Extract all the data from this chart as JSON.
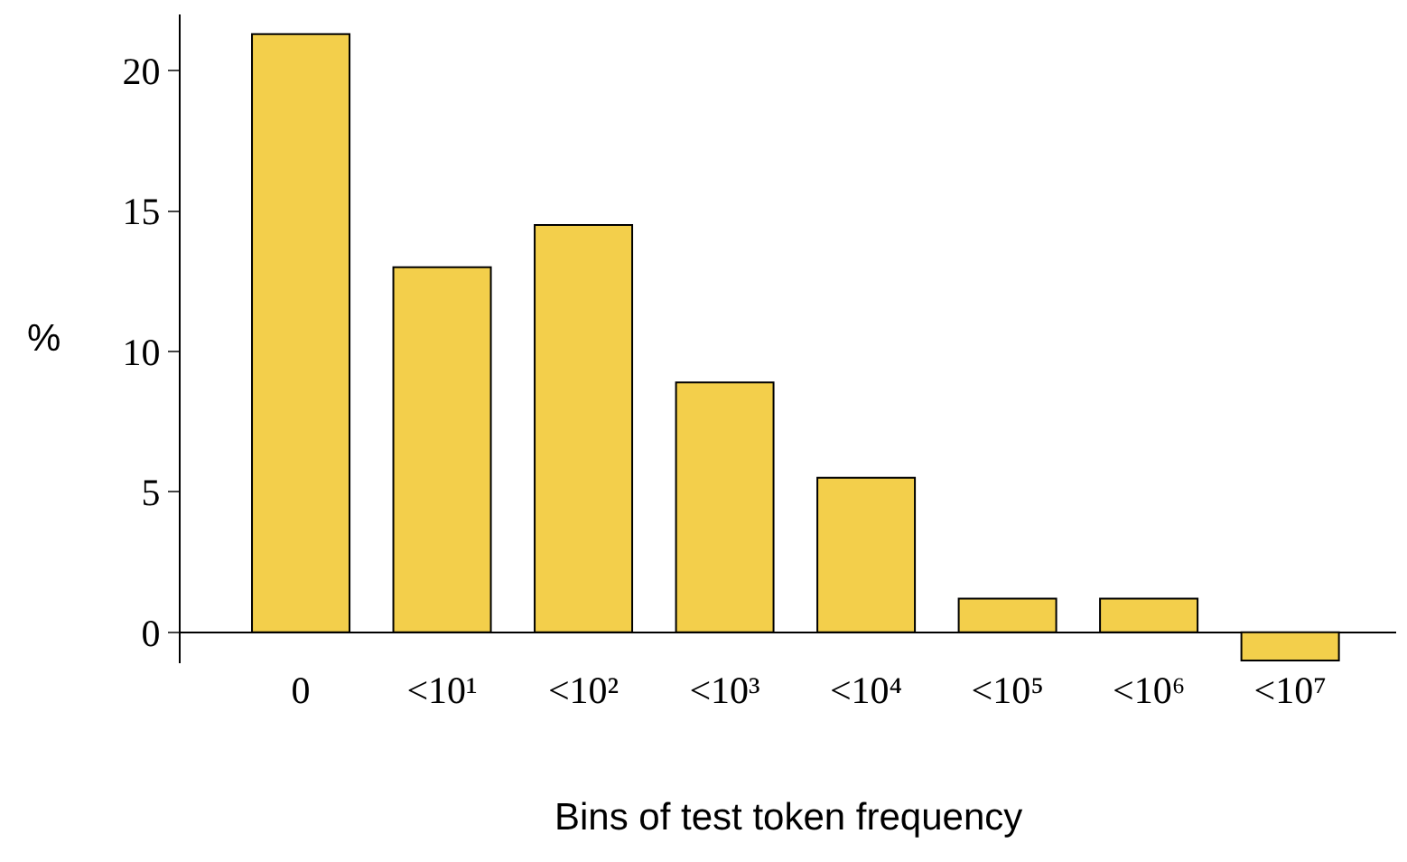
{
  "chart_data": {
    "type": "bar",
    "xlabel": "Bins of test token frequency",
    "ylabel": "%",
    "categories": [
      "0",
      "<10¹",
      "<10²",
      "<10³",
      "<10⁴",
      "<10⁵",
      "<10⁶",
      "<10⁷"
    ],
    "values": [
      21.3,
      13.0,
      14.5,
      8.9,
      5.5,
      1.2,
      1.2,
      -1.0
    ],
    "color": "#f3cf4b",
    "ylim": [
      -1.1,
      22
    ],
    "yticks": [
      0,
      5,
      10,
      15,
      20
    ]
  }
}
